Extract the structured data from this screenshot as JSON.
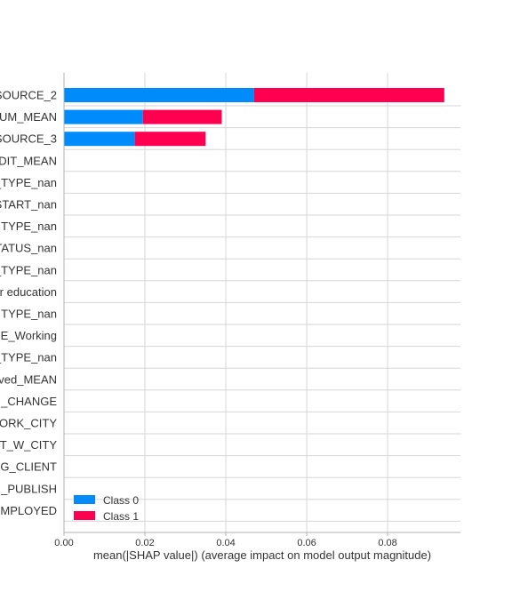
{
  "chart_data": {
    "type": "bar",
    "stacked": true,
    "orientation": "horizontal",
    "xlabel": "mean(|SHAP value|) (average impact on model output magnitude)",
    "ylabel": "",
    "xlim": [
      0,
      0.098
    ],
    "xticks": [
      0.0,
      0.02,
      0.04,
      0.06,
      0.08
    ],
    "xtick_labels": [
      "0.00",
      "0.02",
      "0.04",
      "0.06",
      "0.08"
    ],
    "grid": true,
    "legend_position": "bottom-left",
    "categories": [
      "SOURCE_2",
      "UM_MEAN",
      "SOURCE_3",
      "DIT_MEAN",
      "_TYPE_nan",
      "START_nan",
      "TYPE_nan",
      "TATUS_nan",
      "_TYPE_nan",
      "r education",
      "TYPE_nan",
      "E_Working",
      "_TYPE_nan",
      "ved_MEAN",
      "_CHANGE",
      "ORK_CITY",
      "T_W_CITY",
      "G_CLIENT",
      "_PUBLISH",
      "MPLOYED"
    ],
    "series": [
      {
        "name": "Class 0",
        "color": "#008bfb",
        "values": [
          0.047,
          0.0195,
          0.0175,
          0,
          0,
          0,
          0,
          0,
          0,
          0,
          0,
          0,
          0,
          0,
          0,
          0,
          0,
          0,
          0,
          0
        ]
      },
      {
        "name": "Class 1",
        "color": "#ff0051",
        "values": [
          0.047,
          0.0195,
          0.0175,
          0,
          0,
          0,
          0,
          0,
          0,
          0,
          0,
          0,
          0,
          0,
          0,
          0,
          0,
          0,
          0,
          0
        ]
      }
    ]
  }
}
